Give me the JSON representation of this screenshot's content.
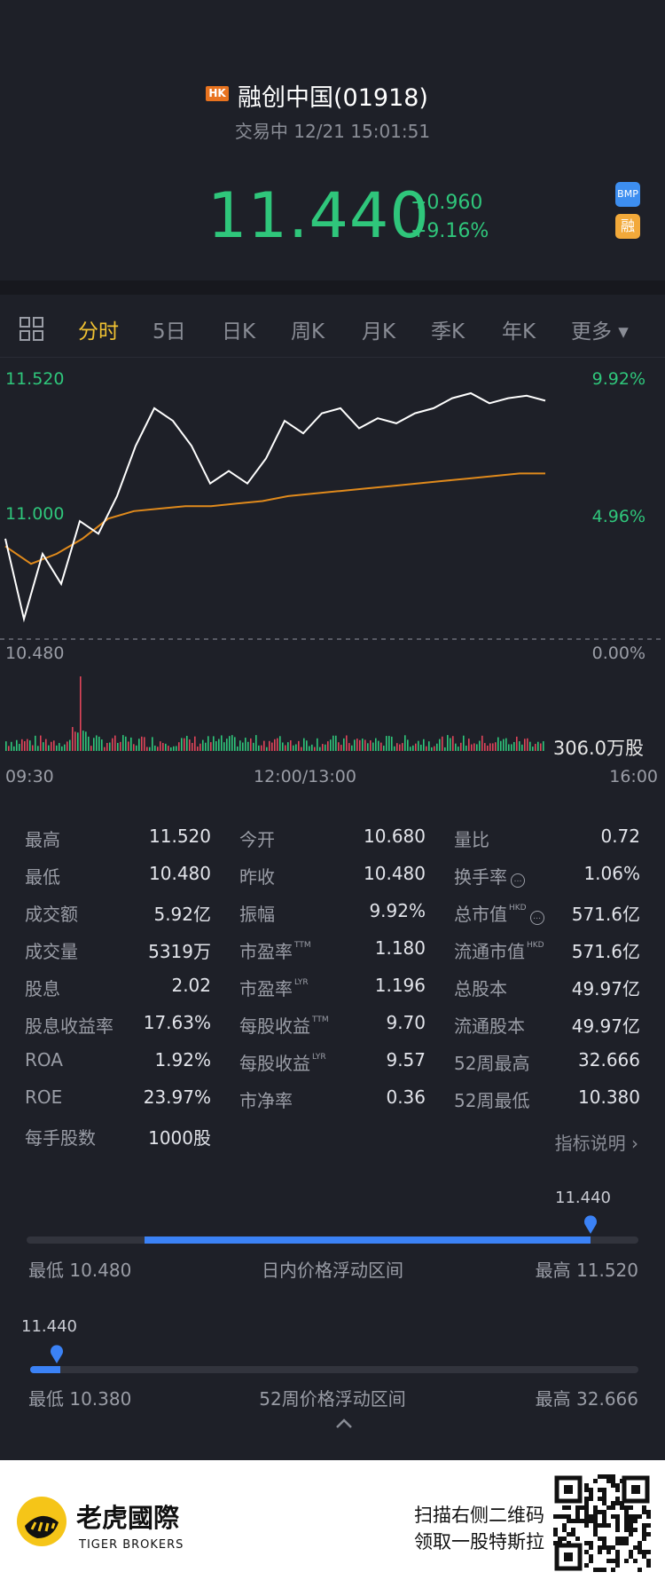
{
  "header": {
    "market_badge": "HK",
    "stock_name": "融创中国(01918)",
    "status": "交易中 12/21 15:01:51",
    "price": "11.440",
    "change": "+0.960",
    "change_pct": "+9.16%",
    "badge_bmp": "BMP",
    "badge_margin": "融"
  },
  "tabs": [
    "分时",
    "5日",
    "日K",
    "周K",
    "月K",
    "季K",
    "年K",
    "更多 ▾"
  ],
  "active_tab": "分时",
  "chart": {
    "y_left_top": "11.520",
    "y_left_mid": "11.000",
    "y_left_bottom": "10.480",
    "y_right_top": "9.92%",
    "y_right_mid": "4.96%",
    "y_right_bottom": "0.00%",
    "volume_label": "306.0万股",
    "x_start": "09:30",
    "x_mid": "12:00/13:00",
    "x_end": "16:00"
  },
  "chart_data": {
    "type": "line",
    "x_labels": [
      "09:30",
      "12:00/13:00",
      "16:00"
    ],
    "ylim": [
      10.48,
      11.52
    ],
    "series": [],
    "price_line": [
      10.88,
      10.56,
      10.82,
      10.7,
      10.95,
      10.9,
      11.05,
      11.25,
      11.4,
      11.35,
      11.25,
      11.1,
      11.15,
      11.1,
      11.2,
      11.35,
      11.3,
      11.38,
      11.4,
      11.32,
      11.36,
      11.34,
      11.38,
      11.4,
      11.44,
      11.46,
      11.42,
      11.44,
      11.45,
      11.43
    ],
    "avg_line": [
      10.85,
      10.78,
      10.82,
      10.88,
      10.96,
      10.99,
      11.0,
      11.01,
      11.01,
      11.02,
      11.03,
      11.05,
      11.06,
      11.07,
      11.08,
      11.09,
      11.1,
      11.11,
      11.12,
      11.13,
      11.14,
      11.14
    ]
  },
  "stats": [
    [
      {
        "label": "最高",
        "value": "11.520"
      },
      {
        "label": "今开",
        "value": "10.680"
      },
      {
        "label": "量比",
        "value": "0.72"
      }
    ],
    [
      {
        "label": "最低",
        "value": "10.480"
      },
      {
        "label": "昨收",
        "value": "10.480"
      },
      {
        "label": "换手率",
        "value": "1.06%"
      }
    ],
    [
      {
        "label": "成交额",
        "value": "5.92亿"
      },
      {
        "label": "振幅",
        "value": "9.92%"
      },
      {
        "label": "总市值",
        "value": "571.6亿"
      }
    ],
    [
      {
        "label": "成交量",
        "value": "5319万"
      },
      {
        "label": "市盈率",
        "value": "1.180"
      },
      {
        "label": "流通市值",
        "value": "571.6亿"
      }
    ],
    [
      {
        "label": "股息",
        "value": "2.02"
      },
      {
        "label": "市盈率",
        "value": "1.196"
      },
      {
        "label": "总股本",
        "value": "49.97亿"
      }
    ],
    [
      {
        "label": "股息收益率",
        "value": "17.63%"
      },
      {
        "label": "每股收益",
        "value": "9.70"
      },
      {
        "label": "流通股本",
        "value": "49.97亿"
      }
    ],
    [
      {
        "label": "ROA",
        "value": "1.92%"
      },
      {
        "label": "每股收益",
        "value": "9.57"
      },
      {
        "label": "52周最高",
        "value": "32.666"
      }
    ],
    [
      {
        "label": "ROE",
        "value": "23.97%"
      },
      {
        "label": "市净率",
        "value": "0.36"
      },
      {
        "label": "52周最低",
        "value": "10.380"
      }
    ],
    [
      {
        "label": "每手股数",
        "value": "1000股"
      }
    ]
  ],
  "sup_tags": {
    "ttm": "TTM",
    "lyr": "LYR",
    "hkd": "HKD"
  },
  "indicator_link": "指标说明",
  "day_range": {
    "current": "11.440",
    "low": "最低 10.480",
    "title": "日内价格浮动区间",
    "high": "最高 11.520",
    "low_fill": 0.2,
    "current_pos": 0.92
  },
  "week52_range": {
    "current": "11.440",
    "low": "最低 10.380",
    "title": "52周价格浮动区间",
    "high": "最高 32.666",
    "current_pos": 0.048
  },
  "footer": {
    "brand_cn": "老虎國際",
    "brand_en": "TIGER BROKERS",
    "promo_line1": "扫描右侧二维码",
    "promo_line2": "领取一股特斯拉"
  },
  "colors": {
    "up": "#2fc67b",
    "accent": "#f1c232",
    "avg_line": "#e08a1c",
    "range": "#3b82f6"
  }
}
